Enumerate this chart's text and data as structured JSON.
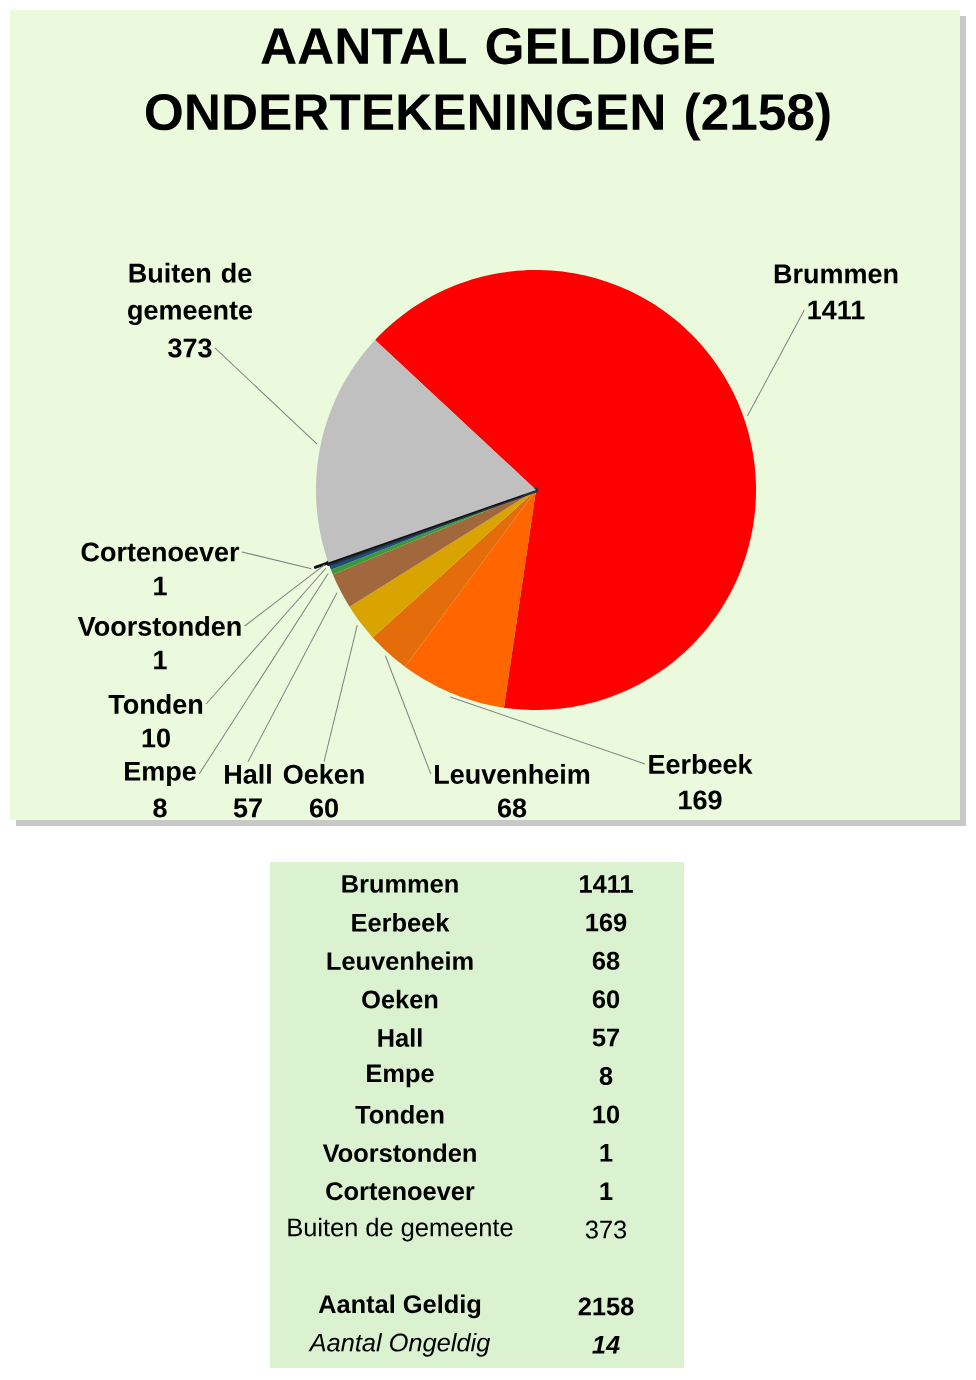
{
  "chart_data": [
    {
      "type": "pie",
      "title": "AANTAL GELDIGE ONDERTEKENINGEN (2158)",
      "categories": [
        "Brummen",
        "Eerbeek",
        "Leuvenheim",
        "Oeken",
        "Hall",
        "Empe",
        "Tonden",
        "Voorstonden",
        "Cortenoever",
        "Buiten de gemeente"
      ],
      "values": [
        1411,
        169,
        68,
        60,
        57,
        8,
        10,
        1,
        1,
        373
      ],
      "colors": [
        "#ff0000",
        "#ff6600",
        "#e46c0a",
        "#d9a300",
        "#a0683c",
        "#3a9a3a",
        "#1f4e79",
        "#203040",
        "#101010",
        "#c0c0c0"
      ],
      "data_labels": true
    },
    {
      "type": "other",
      "categories": [
        "Brummen",
        "Eerbeek",
        "Leuvenheim",
        "Oeken",
        "Hall",
        "Empe",
        "Tonden",
        "Voorstonden",
        "Cortenoever",
        "Buiten de gemeente",
        "Aantal Geldig",
        "Aantal Ongeldig"
      ],
      "values": [
        1411,
        169,
        68,
        60,
        57,
        8,
        10,
        1,
        1,
        373,
        2158,
        14
      ],
      "data_labels": true
    }
  ]
}
